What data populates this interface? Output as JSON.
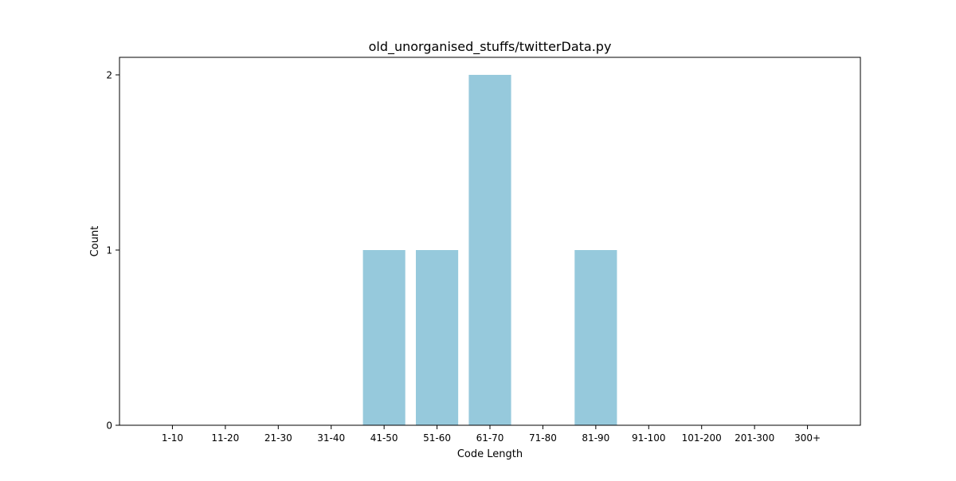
{
  "chart_data": {
    "type": "bar",
    "title": "old_unorganised_stuffs/twitterData.py",
    "xlabel": "Code Length",
    "ylabel": "Count",
    "categories": [
      "1-10",
      "11-20",
      "21-30",
      "31-40",
      "41-50",
      "51-60",
      "61-70",
      "71-80",
      "81-90",
      "91-100",
      "101-200",
      "201-300",
      "300+"
    ],
    "values": [
      0,
      0,
      0,
      0,
      1,
      1,
      2,
      0,
      1,
      0,
      0,
      0,
      0
    ],
    "ylim": [
      0,
      2.1
    ],
    "yticks": [
      0,
      1,
      2
    ],
    "grid": false,
    "bar_color": "#96c9dc",
    "axis_color": "#000000"
  }
}
